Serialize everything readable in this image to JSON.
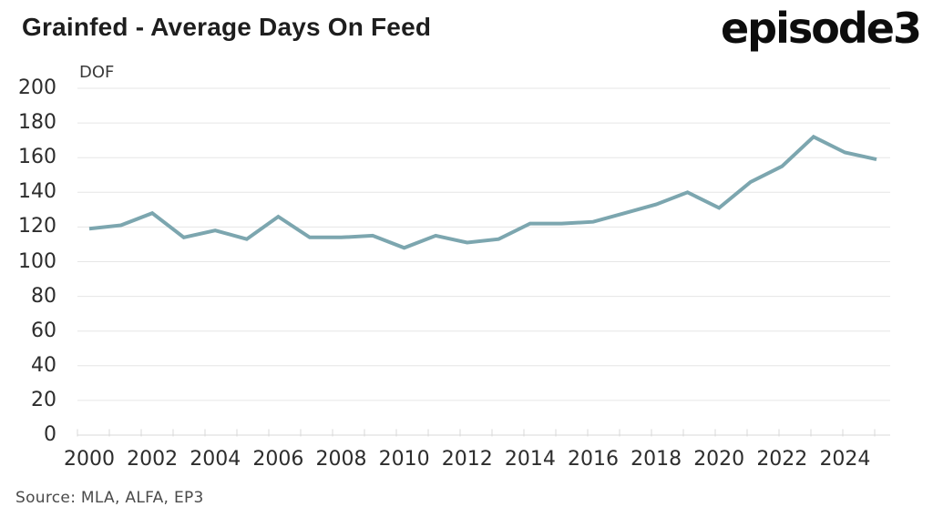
{
  "header": {
    "title": "Grainfed - Average Days On Feed",
    "logo_text": "episode3"
  },
  "chart_data": {
    "type": "line",
    "title": "Grainfed - Average Days On Feed",
    "ylabel": "DOF",
    "xlabel": "",
    "series_name": "Average Days On Feed",
    "x": [
      2000,
      2001,
      2002,
      2003,
      2004,
      2005,
      2006,
      2007,
      2008,
      2009,
      2010,
      2011,
      2012,
      2013,
      2014,
      2015,
      2016,
      2017,
      2018,
      2019,
      2020,
      2021,
      2022,
      2023,
      2024,
      2025
    ],
    "values": [
      119,
      121,
      128,
      114,
      118,
      113,
      126,
      114,
      114,
      115,
      108,
      115,
      111,
      113,
      122,
      122,
      123,
      128,
      133,
      140,
      131,
      146,
      155,
      172,
      163,
      159
    ],
    "ylim": [
      0,
      200
    ],
    "yticks": [
      0,
      20,
      40,
      60,
      80,
      100,
      120,
      140,
      160,
      180,
      200
    ],
    "xtick_labels": [
      2000,
      2002,
      2004,
      2006,
      2008,
      2010,
      2012,
      2014,
      2016,
      2018,
      2020,
      2022,
      2024
    ],
    "grid": true,
    "legend": "none",
    "line_color": "#7CA6AF",
    "grid_color": "#e6e6e6",
    "axis_color": "#d8d8d8"
  },
  "footer": {
    "source": "Source: MLA, ALFA, EP3"
  }
}
